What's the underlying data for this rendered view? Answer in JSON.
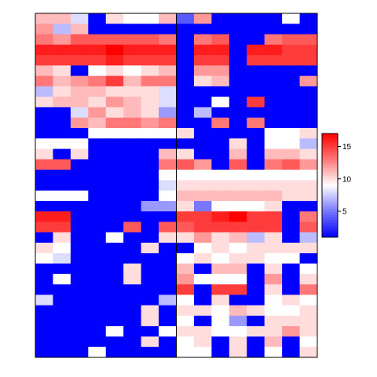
{
  "chart_data": {
    "type": "heatmap",
    "n_rows": 33,
    "n_cols": 16,
    "column_split": 8,
    "title": "",
    "xlabel": "",
    "ylabel": "",
    "color_scale": {
      "min": 1,
      "max": 17,
      "stops": [
        {
          "value": 1,
          "color": "#0000ff"
        },
        {
          "value": 5,
          "color": "#7777ff"
        },
        {
          "value": 9,
          "color": "#ffffff"
        },
        {
          "value": 13,
          "color": "#ff7777"
        },
        {
          "value": 17,
          "color": "#ff0000"
        }
      ]
    },
    "legend": {
      "ticks": [
        "5",
        "10",
        "15"
      ],
      "tick_values": [
        5,
        10,
        15
      ],
      "placement": "right"
    },
    "values": [
      [
        11,
        11,
        8,
        1,
        10,
        9,
        9,
        11,
        4,
        12,
        1,
        1,
        1,
        1,
        9,
        1
      ],
      [
        12,
        7,
        11,
        1,
        1,
        1,
        1,
        1,
        1,
        1,
        1,
        1,
        1,
        1,
        1,
        1
      ],
      [
        13,
        12,
        14,
        14,
        14,
        14,
        14,
        13,
        1,
        13,
        14,
        1,
        1,
        13,
        14,
        14
      ],
      [
        16,
        16,
        16,
        16,
        17,
        16,
        16,
        16,
        1,
        16,
        16,
        1,
        16,
        16,
        15,
        15
      ],
      [
        15,
        15,
        15,
        15,
        16,
        15,
        15,
        15,
        1,
        15,
        15,
        1,
        15,
        15,
        15,
        15
      ],
      [
        11,
        10,
        1,
        9,
        10,
        9,
        10,
        11,
        1,
        12,
        12,
        1,
        1,
        1,
        1,
        1
      ],
      [
        13,
        11,
        12,
        13,
        15,
        11,
        13,
        13,
        1,
        10,
        11,
        1,
        1,
        1,
        1,
        12
      ],
      [
        7,
        10,
        11,
        11,
        10,
        10,
        10,
        8,
        1,
        1,
        1,
        1,
        1,
        1,
        1,
        1
      ],
      [
        10,
        11,
        11,
        10,
        12,
        11,
        10,
        8,
        1,
        1,
        9,
        1,
        15,
        1,
        1,
        1
      ],
      [
        1,
        1,
        8,
        12,
        10,
        11,
        10,
        6,
        1,
        7,
        1,
        1,
        1,
        1,
        1,
        1
      ],
      [
        1,
        1,
        12,
        11,
        13,
        13,
        12,
        13,
        1,
        1,
        13,
        1,
        13,
        1,
        1,
        1
      ],
      [
        1,
        1,
        1,
        9,
        9,
        9,
        9,
        9,
        10,
        1,
        1,
        1,
        1,
        9,
        9,
        10
      ],
      [
        9,
        9,
        9,
        1,
        1,
        1,
        1,
        1,
        1,
        1,
        1,
        10,
        1,
        9,
        9,
        7
      ],
      [
        10,
        1,
        10,
        1,
        1,
        1,
        1,
        11,
        10,
        1,
        1,
        11,
        1,
        11,
        11,
        10
      ],
      [
        14,
        14,
        1,
        1,
        1,
        1,
        1,
        13,
        14,
        12,
        1,
        14,
        1,
        13,
        14,
        12
      ],
      [
        1,
        1,
        1,
        1,
        1,
        1,
        1,
        9,
        9,
        9,
        9,
        9,
        9,
        9,
        9,
        9
      ],
      [
        1,
        1,
        1,
        1,
        1,
        1,
        1,
        8,
        10,
        10,
        10,
        10,
        10,
        10,
        10,
        10
      ],
      [
        9,
        9,
        9,
        1,
        1,
        1,
        1,
        9,
        11,
        11,
        11,
        11,
        11,
        11,
        10,
        10
      ],
      [
        1,
        1,
        1,
        1,
        1,
        1,
        6,
        6,
        10,
        5,
        9,
        9,
        9,
        10,
        1,
        1
      ],
      [
        16,
        16,
        1,
        1,
        1,
        1,
        1,
        1,
        15,
        15,
        16,
        17,
        15,
        15,
        1,
        13
      ],
      [
        15,
        15,
        1,
        1,
        1,
        14,
        1,
        14,
        14,
        15,
        15,
        15,
        15,
        15,
        1,
        14
      ],
      [
        1,
        10,
        1,
        1,
        9,
        1,
        1,
        10,
        10,
        12,
        10,
        11,
        7,
        10,
        1,
        7
      ],
      [
        10,
        9,
        1,
        1,
        1,
        1,
        10,
        1,
        1,
        9,
        10,
        9,
        10,
        10,
        10,
        10
      ],
      [
        9,
        8,
        1,
        1,
        1,
        1,
        1,
        1,
        9,
        10,
        9,
        10,
        10,
        9,
        9,
        1
      ],
      [
        1,
        1,
        1,
        1,
        1,
        10,
        1,
        1,
        11,
        1,
        11,
        11,
        1,
        10,
        1,
        9
      ],
      [
        1,
        9,
        1,
        1,
        1,
        10,
        1,
        1,
        12,
        9,
        9,
        9,
        1,
        12,
        1,
        10
      ],
      [
        1,
        1,
        1,
        1,
        1,
        1,
        1,
        1,
        15,
        1,
        15,
        15,
        1,
        10,
        1,
        13
      ],
      [
        8,
        1,
        1,
        1,
        1,
        1,
        1,
        7,
        9,
        1,
        10,
        1,
        1,
        9,
        10,
        9
      ],
      [
        1,
        1,
        1,
        1,
        1,
        1,
        10,
        1,
        10,
        10,
        9,
        11,
        10,
        9,
        9,
        10
      ],
      [
        1,
        1,
        1,
        1,
        1,
        1,
        10,
        1,
        9,
        1,
        9,
        6,
        1,
        10,
        10,
        10
      ],
      [
        1,
        1,
        1,
        1,
        9,
        1,
        1,
        9,
        10,
        10,
        9,
        9,
        10,
        10,
        12,
        10
      ],
      [
        1,
        1,
        1,
        1,
        1,
        1,
        10,
        1,
        9,
        10,
        1,
        10,
        1,
        11,
        1,
        9
      ],
      [
        1,
        1,
        1,
        9,
        1,
        1,
        1,
        1,
        9,
        9,
        1,
        10,
        1,
        9,
        1,
        10
      ]
    ]
  }
}
